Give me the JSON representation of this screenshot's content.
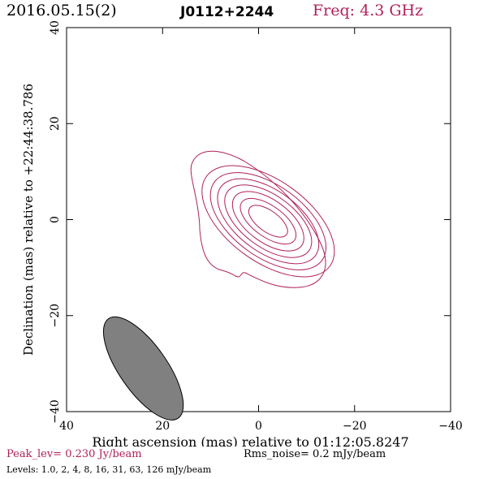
{
  "header": {
    "date": "2016.05.15(2)",
    "source": "J0112+2244",
    "freq": "Freq: 4.3 GHz"
  },
  "footer": {
    "peak": "Peak_lev=  0.230 Jy/beam",
    "rms": "Rms_noise=  0.2 mJy/beam",
    "levels": "Levels: 1.0,   2,   4,   8,  16,  31,  63, 126 mJy/beam"
  },
  "colors": {
    "contour": "#b0205a",
    "beam_fill": "#808080",
    "peak_text": "#b0205a"
  },
  "chart_data": {
    "type": "contour",
    "xlabel": "Right ascension (mas) relative to 01:12:05.8247",
    "ylabel": "Declination (mas) relative to +22:44:38.786",
    "xlim": [
      40,
      -40
    ],
    "ylim": [
      -40,
      40
    ],
    "xticks": [
      40,
      20,
      0,
      -20,
      -40
    ],
    "yticks": [
      -40,
      -20,
      0,
      20,
      40
    ],
    "xtick_labels": [
      "40",
      "20",
      "0",
      "−20",
      "−40"
    ],
    "ytick_labels": [
      "−40",
      "−20",
      "0",
      "20",
      "40"
    ],
    "contour_levels_mJy": [
      1.0,
      2,
      4,
      8,
      16,
      31,
      63,
      126
    ],
    "source_center": [
      -2,
      0
    ],
    "source_position_angle_deg": 135,
    "beam": {
      "center": [
        24,
        -31
      ],
      "major_mas": 11.5,
      "minor_mas": 4.5,
      "position_angle_deg": -35
    }
  }
}
